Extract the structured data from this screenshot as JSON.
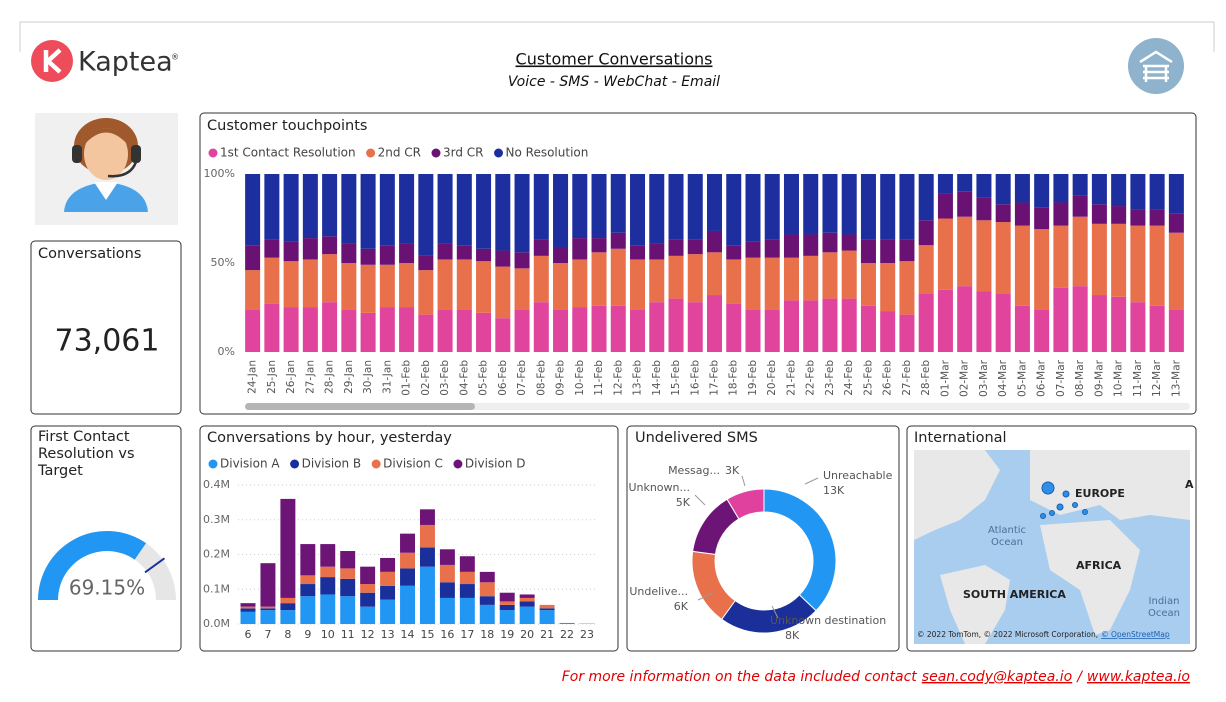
{
  "header": {
    "logo": "Kaptea",
    "title": "Customer Conversations",
    "subtitle": "Voice - SMS - WebChat - Email"
  },
  "kpi": {
    "title": "Conversations",
    "value": "73,061"
  },
  "map": {
    "title": "International",
    "labels": [
      "EUROPE",
      "AFRICA",
      "SOUTH AMERICA",
      "Atlantic",
      "Ocean",
      "Indian",
      "Ocean",
      "A"
    ],
    "attribution": "© 2022 TomTom, © 2022 Microsoft Corporation,",
    "attribution_link": "© OpenStreetMap"
  },
  "footer": {
    "text": "For more information on the data included contact",
    "email": "sean.cody@kaptea.io",
    "separator": "/",
    "website": "www.kaptea.io"
  },
  "chart_data": [
    {
      "type": "stacked_bar",
      "title": "Customer touchpoints",
      "categories": [
        "24-Jan",
        "25-Jan",
        "26-Jan",
        "27-Jan",
        "28-Jan",
        "29-Jan",
        "30-Jan",
        "31-Jan",
        "01-Feb",
        "02-Feb",
        "03-Feb",
        "04-Feb",
        "05-Feb",
        "06-Feb",
        "07-Feb",
        "08-Feb",
        "09-Feb",
        "10-Feb",
        "11-Feb",
        "12-Feb",
        "13-Feb",
        "14-Feb",
        "15-Feb",
        "16-Feb",
        "17-Feb",
        "18-Feb",
        "19-Feb",
        "20-Feb",
        "21-Feb",
        "22-Feb",
        "23-Feb",
        "24-Feb",
        "25-Feb",
        "26-Feb",
        "27-Feb",
        "28-Feb",
        "01-Mar",
        "02-Mar",
        "03-Mar",
        "04-Mar",
        "05-Mar",
        "06-Mar",
        "07-Mar",
        "08-Mar",
        "09-Mar",
        "10-Mar",
        "11-Mar",
        "12-Mar",
        "13-Mar"
      ],
      "series": [
        {
          "name": "1st Contact Resolution",
          "color": "#e0449c",
          "values": [
            24,
            27,
            25,
            25,
            28,
            24,
            22,
            25,
            25,
            21,
            24,
            24,
            22,
            19,
            24,
            28,
            24,
            25,
            26,
            26,
            24,
            28,
            30,
            28,
            32,
            27,
            24,
            24,
            29,
            29,
            30,
            30,
            26,
            23,
            21,
            33,
            35,
            37,
            34,
            33,
            26,
            24,
            36,
            37,
            32,
            31,
            28,
            26,
            24
          ]
        },
        {
          "name": "2nd CR",
          "color": "#e8704a",
          "values": [
            22,
            26,
            26,
            27,
            27,
            26,
            27,
            24,
            25,
            25,
            28,
            28,
            29,
            29,
            23,
            26,
            26,
            27,
            30,
            32,
            28,
            24,
            24,
            27,
            24,
            25,
            29,
            29,
            24,
            25,
            26,
            27,
            24,
            27,
            30,
            27,
            40,
            39,
            40,
            40,
            45,
            45,
            35,
            39,
            40,
            41,
            43,
            45,
            43
          ]
        },
        {
          "name": "3rd CR",
          "color": "#6a1273",
          "values": [
            14,
            10,
            11,
            12,
            10,
            11,
            9,
            11,
            11,
            8,
            9,
            8,
            7,
            9,
            9,
            9,
            9,
            12,
            8,
            9,
            8,
            9,
            9,
            8,
            12,
            8,
            9,
            10,
            13,
            12,
            11,
            9,
            13,
            13,
            12,
            14,
            14,
            14,
            13,
            10,
            13,
            12,
            13,
            12,
            11,
            10,
            9,
            9,
            11
          ]
        },
        {
          "name": "No Resolution",
          "color": "#1d2f9e",
          "values": [
            40,
            37,
            38,
            36,
            35,
            39,
            42,
            40,
            39,
            46,
            39,
            40,
            42,
            43,
            44,
            37,
            41,
            36,
            36,
            33,
            40,
            39,
            37,
            37,
            32,
            40,
            38,
            37,
            34,
            34,
            33,
            34,
            37,
            37,
            37,
            26,
            11,
            10,
            13,
            17,
            16,
            19,
            16,
            12,
            17,
            18,
            20,
            20,
            22
          ]
        }
      ],
      "ylim": [
        0,
        100
      ],
      "yticks": [
        {
          "value": 0,
          "label": "0%"
        },
        {
          "value": 50,
          "label": "50%"
        },
        {
          "value": 100,
          "label": "100%"
        }
      ]
    },
    {
      "type": "stacked_bar",
      "title": "Conversations by hour, yesterday",
      "categories": [
        6,
        7,
        8,
        9,
        10,
        11,
        12,
        13,
        14,
        15,
        16,
        17,
        18,
        19,
        20,
        21,
        22,
        23
      ],
      "series": [
        {
          "name": "Division A",
          "color": "#2196f3",
          "values": [
            35000,
            40000,
            40000,
            80000,
            85000,
            80000,
            50000,
            70000,
            110000,
            165000,
            75000,
            75000,
            55000,
            40000,
            50000,
            40000,
            3000,
            1000
          ]
        },
        {
          "name": "Division B",
          "color": "#1a2f9a",
          "values": [
            10000,
            5000,
            20000,
            35000,
            50000,
            50000,
            40000,
            40000,
            50000,
            55000,
            45000,
            40000,
            25000,
            15000,
            15000,
            5000,
            0,
            0
          ]
        },
        {
          "name": "Division C",
          "color": "#e8704a",
          "values": [
            5000,
            5000,
            15000,
            25000,
            30000,
            30000,
            25000,
            40000,
            45000,
            65000,
            50000,
            35000,
            40000,
            10000,
            10000,
            10000,
            0,
            0
          ]
        },
        {
          "name": "Division D",
          "color": "#6c1577",
          "values": [
            10000,
            125000,
            285000,
            90000,
            65000,
            50000,
            50000,
            40000,
            55000,
            45000,
            45000,
            45000,
            30000,
            25000,
            10000,
            0,
            0,
            0
          ]
        }
      ],
      "ylim": [
        0,
        400000
      ],
      "grid": true,
      "yticks": [
        {
          "value": 0,
          "label": "0.0M"
        },
        {
          "value": 100000,
          "label": "0.1M"
        },
        {
          "value": 200000,
          "label": "0.2M"
        },
        {
          "value": 300000,
          "label": "0.3M"
        },
        {
          "value": 400000,
          "label": "0.4M"
        }
      ]
    },
    {
      "type": "donut",
      "title": "Undelivered SMS",
      "categories": [
        "Unreachable",
        "Unknown destination",
        "Undelive...",
        "Unknown...",
        "Messag..."
      ],
      "values": [
        13000,
        8000,
        6000,
        5000,
        3000
      ],
      "value_labels": [
        "13K",
        "8K",
        "6K",
        "5K",
        "3K"
      ],
      "colors": [
        "#2196f3",
        "#1a2f9a",
        "#e8704a",
        "#6c1577",
        "#e0419f"
      ]
    },
    {
      "type": "gauge",
      "title": "First Contact Resolution vs Target",
      "value": 69.15,
      "value_label": "69.15%",
      "target": 80,
      "ylim": [
        0,
        100
      ],
      "color": "#2196f3",
      "target_color": "#1a2f9a"
    }
  ]
}
